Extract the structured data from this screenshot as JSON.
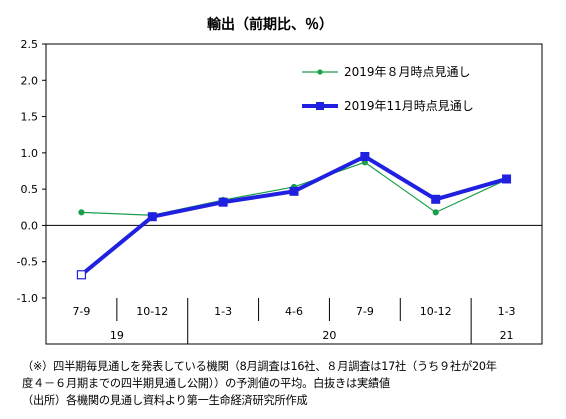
{
  "chart_data": {
    "type": "line",
    "title": "輸出（前期比、％）",
    "xlabel": "",
    "ylabel": "",
    "ylim": [
      -1.0,
      2.5
    ],
    "yticks": [
      "2.5",
      "2.0",
      "1.5",
      "1.0",
      "0.5",
      "0.0",
      "-0.5",
      "-1.0"
    ],
    "ytick_values": [
      2.5,
      2.0,
      1.5,
      1.0,
      0.5,
      0.0,
      -0.5,
      -1.0
    ],
    "categories": [
      "7-9",
      "10-12",
      "1-3",
      "4-6",
      "7-9",
      "10-12",
      "1-3"
    ],
    "year_groups": [
      {
        "label": "19",
        "span": 2
      },
      {
        "label": "20",
        "span": 4
      },
      {
        "label": "21",
        "span": 1
      }
    ],
    "grid": false,
    "legend_position": "top-right",
    "series": [
      {
        "name": "2019年８月時点見通し",
        "color": "#1a9e4a",
        "values": [
          0.18,
          0.14,
          0.35,
          0.53,
          0.87,
          0.18,
          0.63
        ],
        "actual_points": []
      },
      {
        "name": "2019年11月時点見通し",
        "color": "#2020e0",
        "values": [
          -0.68,
          0.12,
          0.32,
          0.47,
          0.95,
          0.36,
          0.64
        ],
        "actual_points": [
          0
        ]
      }
    ]
  },
  "notes": {
    "line1": "（※）四半期毎見通しを発表している機関（8月調査は16社、８月調査は17社（うち９社が20年",
    "line2": "度４－６月期までの四半期見通し公開））の予測値の平均。白抜きは実績値",
    "line3": "（出所）各機関の見通し資料より第一生命経済研究所作成"
  }
}
